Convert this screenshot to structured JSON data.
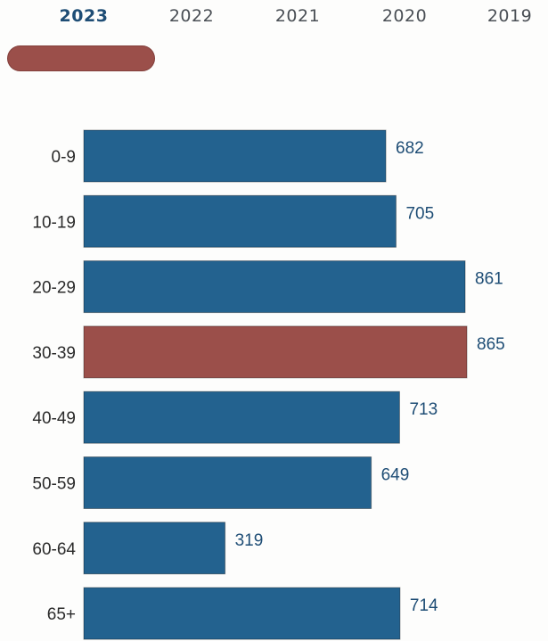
{
  "year_tabs": {
    "items": [
      "2023",
      "2022",
      "2021",
      "2020",
      "2019"
    ],
    "selected": "2023"
  },
  "colors": {
    "bar": "#23628f",
    "highlight": "#9b4f4a",
    "value_text": "#1e4d75",
    "active_tab": "#1e4d75",
    "tab_text": "#4a4f55"
  },
  "chart_data": {
    "type": "bar",
    "orientation": "horizontal",
    "categories": [
      "0-9",
      "10-19",
      "20-29",
      "30-39",
      "40-49",
      "50-59",
      "60-64",
      "65+"
    ],
    "values": [
      682,
      705,
      861,
      865,
      713,
      649,
      319,
      714
    ],
    "highlighted_category": "30-39",
    "title": "",
    "xlabel": "",
    "ylabel": "",
    "xlim": [
      0,
      865
    ],
    "grid": false,
    "legend": "none",
    "data_labels": true
  }
}
